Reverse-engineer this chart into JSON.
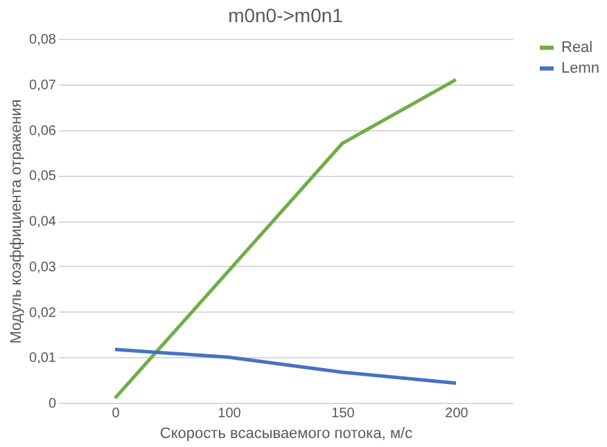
{
  "chart_data": {
    "type": "line",
    "title": "m0n0->m0n1",
    "xlabel": "Скорость всасываемого потока, м/с",
    "ylabel": "Модуль коэффициента отражения",
    "categories": [
      "0",
      "100",
      "150",
      "200"
    ],
    "series": [
      {
        "name": "Real",
        "color": "#70ad47",
        "values": [
          0.001,
          0.029,
          0.057,
          0.071
        ]
      },
      {
        "name": "Lemn",
        "color": "#4472c4",
        "values": [
          0.0117,
          0.01,
          0.0067,
          0.0043
        ]
      }
    ],
    "ylim": [
      0,
      0.08
    ],
    "yticks": [
      0,
      {
        "value": 0.01,
        "label": "0,01"
      },
      {
        "value": 0.02,
        "label": "0,02"
      },
      {
        "value": 0.03,
        "label": "0,03"
      },
      {
        "value": 0.04,
        "label": "0,04"
      },
      {
        "value": 0.05,
        "label": "0,05"
      },
      {
        "value": 0.06,
        "label": "0,06"
      },
      {
        "value": 0.07,
        "label": "0,07"
      },
      {
        "value": 0.08,
        "label": "0,08"
      }
    ],
    "grid": "y",
    "legend": "right",
    "marker": "none",
    "line_style": "solid"
  }
}
